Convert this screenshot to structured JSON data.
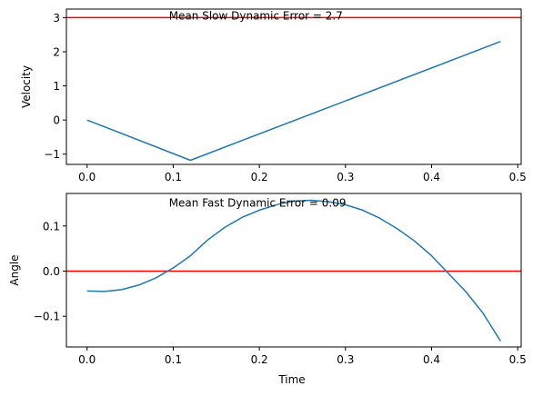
{
  "chart_data": [
    {
      "type": "line",
      "ylabel": "Velocity",
      "xlabel": "",
      "xlim": [
        -0.024,
        0.504
      ],
      "ylim": [
        -1.3,
        3.25
      ],
      "xticks": [
        0.0,
        0.1,
        0.2,
        0.3,
        0.4,
        0.5
      ],
      "xtick_labels": [
        "0.0",
        "0.1",
        "0.2",
        "0.3",
        "0.4",
        "0.5"
      ],
      "yticks": [
        -1,
        0,
        1,
        2,
        3
      ],
      "ytick_labels": [
        "−1",
        "0",
        "1",
        "2",
        "3"
      ],
      "series": [
        {
          "x": [
            0.0,
            0.12,
            0.48
          ],
          "y": [
            0.0,
            -1.18,
            2.3
          ],
          "color": "#1f77b4"
        }
      ],
      "hline": {
        "y": 3.0,
        "color": "#ff0000"
      },
      "annotation": {
        "text": "Mean Slow Dynamic Error = 2.7",
        "x": 0.095,
        "y": 2.95
      },
      "grid": false
    },
    {
      "type": "line",
      "ylabel": "Angle",
      "xlabel": "Time",
      "xlim": [
        -0.024,
        0.504
      ],
      "ylim": [
        -0.168,
        0.172
      ],
      "xticks": [
        0.0,
        0.1,
        0.2,
        0.3,
        0.4,
        0.5
      ],
      "xtick_labels": [
        "0.0",
        "0.1",
        "0.2",
        "0.3",
        "0.4",
        "0.5"
      ],
      "yticks": [
        -0.1,
        0.0,
        0.1
      ],
      "ytick_labels": [
        "−0.1",
        "0.0",
        "0.1"
      ],
      "series": [
        {
          "x": [
            0.0,
            0.02,
            0.04,
            0.06,
            0.08,
            0.1,
            0.12,
            0.14,
            0.16,
            0.18,
            0.2,
            0.22,
            0.24,
            0.26,
            0.28,
            0.3,
            0.32,
            0.34,
            0.36,
            0.38,
            0.4,
            0.42,
            0.44,
            0.46,
            0.48
          ],
          "y": [
            -0.044,
            -0.045,
            -0.041,
            -0.031,
            -0.015,
            0.007,
            0.034,
            0.069,
            0.097,
            0.119,
            0.135,
            0.147,
            0.155,
            0.157,
            0.154,
            0.147,
            0.135,
            0.117,
            0.094,
            0.067,
            0.034,
            -0.006,
            -0.046,
            -0.094,
            -0.155
          ],
          "color": "#1f77b4"
        }
      ],
      "hline": {
        "y": 0.0,
        "color": "#ff0000"
      },
      "annotation": {
        "text": "Mean Fast Dynamic Error = 0.09",
        "x": 0.095,
        "y": 0.143
      },
      "grid": false
    }
  ]
}
